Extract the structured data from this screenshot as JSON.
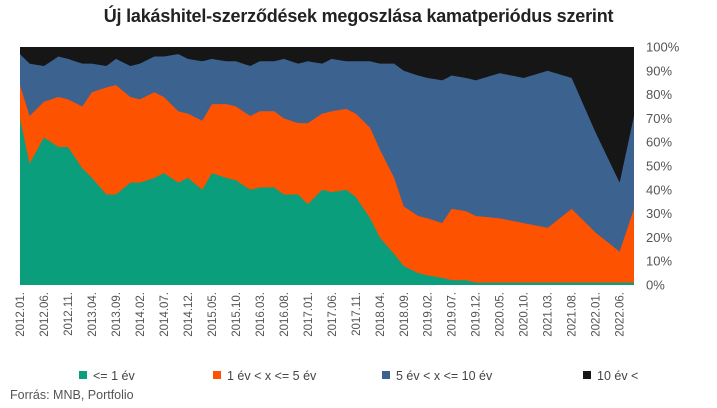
{
  "title": "Új lakáshitel-szerződések megoszlása kamatperiódus szerint",
  "source": "Forrás: MNB, Portfolio",
  "colors": {
    "le1": "#0a9e7d",
    "1to5": "#fd5200",
    "5to10": "#3c6290",
    "gt10": "#161616"
  },
  "chart_data": {
    "type": "area",
    "stacked": true,
    "y_ticks": [
      "0%",
      "10%",
      "20%",
      "30%",
      "40%",
      "50%",
      "60%",
      "70%",
      "80%",
      "90%",
      "100%"
    ],
    "ylim": [
      0,
      100
    ],
    "x_tick_labels": [
      "2012.01.",
      "2012.06.",
      "2012.11.",
      "2013.04.",
      "2013.09.",
      "2014.02.",
      "2014.07.",
      "2014.12.",
      "2015.05.",
      "2015.10.",
      "2016.03.",
      "2016.08.",
      "2017.01.",
      "2017.06.",
      "2017.11.",
      "2018.04.",
      "2018.09.",
      "2019.02.",
      "2019.07.",
      "2019.12.",
      "2020.05.",
      "2020.10.",
      "2021.03.",
      "2021.08.",
      "2022.01.",
      "2022.06."
    ],
    "x_axis": "monthly, 2012.01. – 2022.09.",
    "legend": [
      "<= 1 év",
      "1 év < x <= 5 év",
      "5 év  < x <=  10 év",
      "10 év <"
    ],
    "series": [
      {
        "name": "<= 1 év",
        "points": [
          [
            "2012.01.",
            70
          ],
          [
            "2012.03.",
            51
          ],
          [
            "2012.06.",
            62
          ],
          [
            "2012.09.",
            58
          ],
          [
            "2012.11.",
            58
          ],
          [
            "2013.02.",
            49
          ],
          [
            "2013.04.",
            45
          ],
          [
            "2013.07.",
            38
          ],
          [
            "2013.09.",
            38
          ],
          [
            "2013.12.",
            43
          ],
          [
            "2014.02.",
            43
          ],
          [
            "2014.05.",
            45
          ],
          [
            "2014.07.",
            47
          ],
          [
            "2014.10.",
            43
          ],
          [
            "2014.12.",
            45
          ],
          [
            "2015.03.",
            40
          ],
          [
            "2015.05.",
            47
          ],
          [
            "2015.08.",
            45
          ],
          [
            "2015.10.",
            44
          ],
          [
            "2016.01.",
            40
          ],
          [
            "2016.03.",
            41
          ],
          [
            "2016.06.",
            41
          ],
          [
            "2016.08.",
            38
          ],
          [
            "2016.11.",
            38
          ],
          [
            "2017.01.",
            34
          ],
          [
            "2017.04.",
            40
          ],
          [
            "2017.06.",
            39
          ],
          [
            "2017.09.",
            40
          ],
          [
            "2017.11.",
            37
          ],
          [
            "2018.02.",
            28
          ],
          [
            "2018.04.",
            20
          ],
          [
            "2018.07.",
            13
          ],
          [
            "2018.09.",
            8
          ],
          [
            "2018.12.",
            5
          ],
          [
            "2019.02.",
            4
          ],
          [
            "2019.05.",
            3
          ],
          [
            "2019.07.",
            2
          ],
          [
            "2019.10.",
            2
          ],
          [
            "2019.12.",
            1
          ],
          [
            "2020.05.",
            1
          ],
          [
            "2020.10.",
            1
          ],
          [
            "2021.03.",
            1
          ],
          [
            "2021.08.",
            1
          ],
          [
            "2022.01.",
            1
          ],
          [
            "2022.06.",
            1
          ],
          [
            "2022.09.",
            1
          ]
        ]
      },
      {
        "name": "1 év < x <= 5 év",
        "points": [
          [
            "2012.01.",
            84
          ],
          [
            "2012.03.",
            71
          ],
          [
            "2012.06.",
            77
          ],
          [
            "2012.09.",
            79
          ],
          [
            "2012.11.",
            78
          ],
          [
            "2013.02.",
            75
          ],
          [
            "2013.04.",
            81
          ],
          [
            "2013.07.",
            83
          ],
          [
            "2013.09.",
            84
          ],
          [
            "2013.12.",
            79
          ],
          [
            "2014.02.",
            78
          ],
          [
            "2014.05.",
            81
          ],
          [
            "2014.07.",
            79
          ],
          [
            "2014.10.",
            73
          ],
          [
            "2014.12.",
            72
          ],
          [
            "2015.03.",
            69
          ],
          [
            "2015.05.",
            76
          ],
          [
            "2015.08.",
            76
          ],
          [
            "2015.10.",
            75
          ],
          [
            "2016.01.",
            71
          ],
          [
            "2016.03.",
            73
          ],
          [
            "2016.06.",
            73
          ],
          [
            "2016.08.",
            70
          ],
          [
            "2016.11.",
            68
          ],
          [
            "2017.01.",
            68
          ],
          [
            "2017.04.",
            72
          ],
          [
            "2017.06.",
            73
          ],
          [
            "2017.09.",
            74
          ],
          [
            "2017.11.",
            72
          ],
          [
            "2018.02.",
            66
          ],
          [
            "2018.04.",
            57
          ],
          [
            "2018.07.",
            45
          ],
          [
            "2018.09.",
            33
          ],
          [
            "2018.12.",
            29
          ],
          [
            "2019.02.",
            28
          ],
          [
            "2019.05.",
            26
          ],
          [
            "2019.07.",
            32
          ],
          [
            "2019.10.",
            31
          ],
          [
            "2019.12.",
            29
          ],
          [
            "2020.05.",
            28
          ],
          [
            "2020.10.",
            26
          ],
          [
            "2021.03.",
            24
          ],
          [
            "2021.08.",
            32
          ],
          [
            "2022.01.",
            22
          ],
          [
            "2022.06.",
            14
          ],
          [
            "2022.09.",
            32
          ]
        ]
      },
      {
        "name": "5 év  < x <=  10 év",
        "points": [
          [
            "2012.01.",
            97
          ],
          [
            "2012.03.",
            93
          ],
          [
            "2012.06.",
            92
          ],
          [
            "2012.09.",
            96
          ],
          [
            "2012.11.",
            95
          ],
          [
            "2013.02.",
            93
          ],
          [
            "2013.04.",
            93
          ],
          [
            "2013.07.",
            92
          ],
          [
            "2013.09.",
            95
          ],
          [
            "2013.12.",
            92
          ],
          [
            "2014.02.",
            93
          ],
          [
            "2014.05.",
            96
          ],
          [
            "2014.07.",
            96
          ],
          [
            "2014.10.",
            97
          ],
          [
            "2014.12.",
            95
          ],
          [
            "2015.03.",
            94
          ],
          [
            "2015.05.",
            95
          ],
          [
            "2015.08.",
            94
          ],
          [
            "2015.10.",
            94
          ],
          [
            "2016.01.",
            92
          ],
          [
            "2016.03.",
            94
          ],
          [
            "2016.06.",
            94
          ],
          [
            "2016.08.",
            95
          ],
          [
            "2016.11.",
            93
          ],
          [
            "2017.01.",
            94
          ],
          [
            "2017.04.",
            93
          ],
          [
            "2017.06.",
            95
          ],
          [
            "2017.09.",
            94
          ],
          [
            "2017.11.",
            94
          ],
          [
            "2018.02.",
            94
          ],
          [
            "2018.04.",
            93
          ],
          [
            "2018.07.",
            93
          ],
          [
            "2018.09.",
            90
          ],
          [
            "2018.12.",
            88
          ],
          [
            "2019.02.",
            87
          ],
          [
            "2019.05.",
            86
          ],
          [
            "2019.07.",
            88
          ],
          [
            "2019.10.",
            87
          ],
          [
            "2019.12.",
            86
          ],
          [
            "2020.05.",
            89
          ],
          [
            "2020.10.",
            87
          ],
          [
            "2021.03.",
            90
          ],
          [
            "2021.08.",
            87
          ],
          [
            "2022.01.",
            64
          ],
          [
            "2022.06.",
            43
          ],
          [
            "2022.09.",
            71
          ]
        ]
      },
      {
        "name": "10 év <",
        "points": [
          [
            "2012.01.",
            100
          ],
          [
            "2022.09.",
            100
          ]
        ]
      }
    ],
    "note": "series points are cumulative (stacked) percentages read from the chart"
  }
}
